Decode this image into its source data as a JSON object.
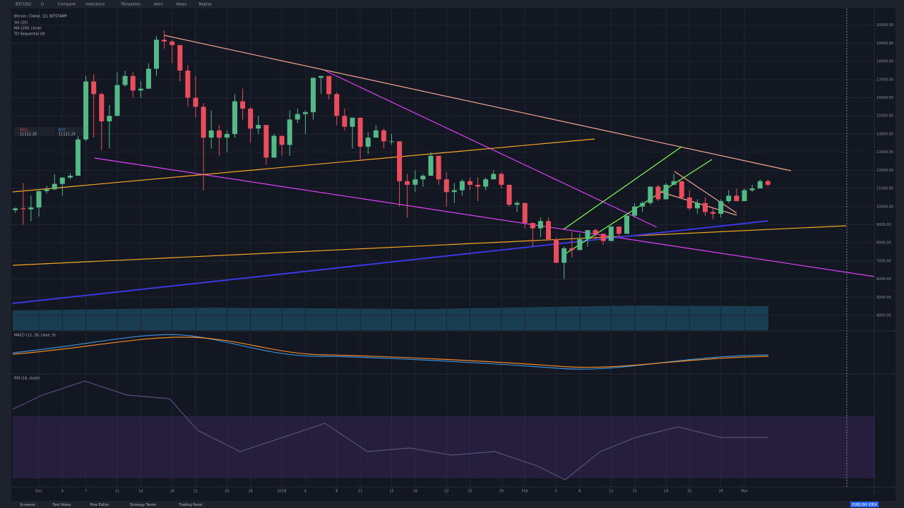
{
  "toolbar": {
    "symbol": "BTCUSD",
    "interval": "D",
    "buttons": [
      "Compare",
      "Indicators",
      "Templates",
      "Alert",
      "Ideas",
      "Replay"
    ]
  },
  "legend": {
    "instrument": "Bitcoin / Dollar, 1D, BITSTAMP",
    "indicators": [
      "Vol (20)",
      "MA (200, close)",
      "TD Sequential (9)"
    ]
  },
  "trade": {
    "sell_label": "SELL",
    "sell_price": "11112.28",
    "buy_label": "BUY",
    "buy_price": "11121.24"
  },
  "panels": {
    "macd": "MACD (12, 26, close, 9)",
    "rsi": "RSI (14, close)"
  },
  "bottom_tabs": [
    "Screener",
    "Text Notes",
    "Pine Editor",
    "Strategy Tester",
    "Trading Panel"
  ],
  "publish": "PUBLISH IDEA",
  "chart_data": {
    "type": "candlestick",
    "up_color": "#53b987",
    "down_color": "#eb4d5c",
    "grid": true,
    "categories": [
      null,
      null,
      null,
      "Dec",
      null,
      null,
      "4",
      null,
      null,
      "7",
      null,
      null,
      null,
      "11",
      null,
      null,
      "14",
      null,
      null,
      null,
      "18",
      null,
      null,
      "21",
      null,
      null,
      null,
      "25",
      null,
      null,
      "28",
      null,
      null,
      null,
      "2018",
      null,
      null,
      "4",
      null,
      null,
      null,
      "8",
      null,
      null,
      "11",
      null,
      null,
      null,
      "15",
      null,
      null,
      "18",
      null,
      null,
      null,
      "22",
      null,
      null,
      "25",
      null,
      null,
      null,
      "29",
      null,
      null,
      "Feb",
      null,
      null,
      null,
      "5",
      null,
      null,
      "8",
      null,
      null,
      null,
      "12",
      null,
      null,
      "15",
      null,
      null,
      null,
      "19",
      null,
      null,
      "22",
      null,
      null,
      null,
      "26",
      null,
      null,
      "Mar",
      null,
      null,
      null
    ],
    "ohlc": [
      [
        9800,
        9950,
        9650,
        9900
      ],
      [
        9900,
        11300,
        9000,
        9850
      ],
      [
        9850,
        10600,
        9200,
        9950
      ],
      [
        9950,
        10900,
        9450,
        10850
      ],
      [
        10850,
        11150,
        10700,
        10950
      ],
      [
        10950,
        11800,
        10900,
        11250
      ],
      [
        11250,
        11600,
        10600,
        11600
      ],
      [
        11600,
        11850,
        11500,
        11700
      ],
      [
        11700,
        13900,
        11700,
        13700
      ],
      [
        13700,
        17200,
        13600,
        16900
      ],
      [
        16900,
        17300,
        13800,
        16200
      ],
      [
        16200,
        16300,
        13100,
        14700
      ],
      [
        14700,
        15600,
        13200,
        15000
      ],
      [
        15000,
        17400,
        15000,
        16700
      ],
      [
        16700,
        17500,
        16600,
        17200
      ],
      [
        17200,
        17400,
        16000,
        16400
      ],
      [
        16400,
        16900,
        16000,
        16500
      ],
      [
        16500,
        17900,
        16500,
        17600
      ],
      [
        17600,
        19400,
        17200,
        19200
      ],
      [
        19200,
        19700,
        18700,
        19100
      ],
      [
        19100,
        19200,
        17900,
        18900
      ],
      [
        18900,
        18900,
        16900,
        17500
      ],
      [
        17500,
        17800,
        15500,
        16000
      ],
      [
        16000,
        17200,
        14900,
        15500
      ],
      [
        15500,
        15700,
        10900,
        13800
      ],
      [
        13800,
        15300,
        13200,
        14200
      ],
      [
        14200,
        14500,
        12800,
        13800
      ],
      [
        13800,
        14200,
        13000,
        14000
      ],
      [
        14000,
        16200,
        13800,
        15800
      ],
      [
        15800,
        16500,
        14800,
        15400
      ],
      [
        15400,
        15500,
        13500,
        14300
      ],
      [
        14300,
        15000,
        14000,
        14500
      ],
      [
        14500,
        14500,
        12300,
        12700
      ],
      [
        12700,
        14000,
        12700,
        13900
      ],
      [
        13900,
        13900,
        12800,
        13400
      ],
      [
        13400,
        15300,
        12800,
        14800
      ],
      [
        14800,
        15400,
        14600,
        15100
      ],
      [
        15100,
        15300,
        14000,
        15200
      ],
      [
        15200,
        17100,
        14800,
        17100
      ],
      [
        17100,
        17200,
        16200,
        17200
      ],
      [
        17200,
        17200,
        15900,
        16200
      ],
      [
        16200,
        16300,
        14500,
        15000
      ],
      [
        15000,
        15400,
        14200,
        14400
      ],
      [
        14400,
        14900,
        13200,
        14900
      ],
      [
        14900,
        14900,
        12600,
        13300
      ],
      [
        13300,
        14100,
        12900,
        13800
      ],
      [
        13800,
        14500,
        13800,
        14200
      ],
      [
        14200,
        14300,
        13200,
        13600
      ],
      [
        13600,
        14000,
        13400,
        13600
      ],
      [
        13600,
        13600,
        10000,
        11400
      ],
      [
        11400,
        11800,
        9400,
        11200
      ],
      [
        11200,
        12000,
        10800,
        11500
      ],
      [
        11500,
        11800,
        11100,
        11700
      ],
      [
        11700,
        13000,
        11700,
        12800
      ],
      [
        12800,
        12800,
        11200,
        11500
      ],
      [
        11500,
        11900,
        10000,
        10800
      ],
      [
        10800,
        11300,
        10200,
        10900
      ],
      [
        10900,
        11500,
        10600,
        11400
      ],
      [
        11400,
        11600,
        10900,
        11200
      ],
      [
        11200,
        11600,
        10300,
        11100
      ],
      [
        11100,
        11600,
        10900,
        11500
      ],
      [
        11500,
        12000,
        11500,
        11800
      ],
      [
        11800,
        11900,
        11000,
        11200
      ],
      [
        11200,
        11200,
        10000,
        10100
      ],
      [
        10100,
        10300,
        9700,
        10200
      ],
      [
        10200,
        10200,
        8800,
        9100
      ],
      [
        9100,
        9100,
        7800,
        8800
      ],
      [
        8800,
        9400,
        8300,
        9200
      ],
      [
        9200,
        9400,
        8100,
        8200
      ],
      [
        8200,
        8300,
        6900,
        6900
      ],
      [
        6900,
        7800,
        6000,
        7700
      ],
      [
        7700,
        8600,
        7200,
        7600
      ],
      [
        7600,
        8500,
        7600,
        8200
      ],
      [
        8200,
        8700,
        7800,
        8700
      ],
      [
        8700,
        8800,
        8200,
        8500
      ],
      [
        8500,
        8500,
        7900,
        8100
      ],
      [
        8100,
        8900,
        8100,
        8900
      ],
      [
        8900,
        8900,
        8400,
        8500
      ],
      [
        8500,
        9500,
        8500,
        9500
      ],
      [
        9500,
        10200,
        9400,
        10000
      ],
      [
        10000,
        10300,
        9700,
        10200
      ],
      [
        10200,
        11100,
        10100,
        11100
      ],
      [
        11100,
        11200,
        10300,
        10400
      ],
      [
        10400,
        11300,
        10400,
        11200
      ],
      [
        11200,
        11800,
        11200,
        11400
      ],
      [
        11400,
        11400,
        10400,
        10500
      ],
      [
        10500,
        10900,
        9800,
        9900
      ],
      [
        9900,
        10400,
        9600,
        10200
      ],
      [
        10200,
        10500,
        9500,
        9700
      ],
      [
        9700,
        9900,
        9300,
        9600
      ],
      [
        9600,
        10400,
        9400,
        10300
      ],
      [
        10300,
        10900,
        10200,
        10600
      ],
      [
        10600,
        11000,
        10300,
        10300
      ],
      [
        10300,
        11000,
        10300,
        10900
      ],
      [
        10900,
        11200,
        10800,
        11000
      ],
      [
        11000,
        11500,
        11000,
        11400
      ],
      [
        11400,
        11500,
        11100,
        11200
      ]
    ],
    "ylim": [
      3300,
      21000
    ],
    "yticks": [
      {
        "value": 4000,
        "label": "4000.00"
      },
      {
        "value": 5000,
        "label": "5000.00"
      },
      {
        "value": 6000,
        "label": "6000.00"
      },
      {
        "value": 7000,
        "label": "7000.00"
      },
      {
        "value": 8000,
        "label": "8000.00"
      },
      {
        "value": 9000,
        "label": "9000.00"
      },
      {
        "value": 10000,
        "label": "10000.00"
      },
      {
        "value": 11000,
        "label": "11000.00"
      },
      {
        "value": 12000,
        "label": "12000.00"
      },
      {
        "value": 13000,
        "label": "13000.00"
      },
      {
        "value": 14000,
        "label": "14000.00"
      },
      {
        "value": 15000,
        "label": "15000.00"
      },
      {
        "value": 16000,
        "label": "16000.00"
      },
      {
        "value": 17000,
        "label": "17000.00"
      },
      {
        "value": 18000,
        "label": "18000.00"
      },
      {
        "value": 19000,
        "label": "19000.00"
      },
      {
        "value": 20000,
        "label": "20000.00"
      }
    ]
  }
}
